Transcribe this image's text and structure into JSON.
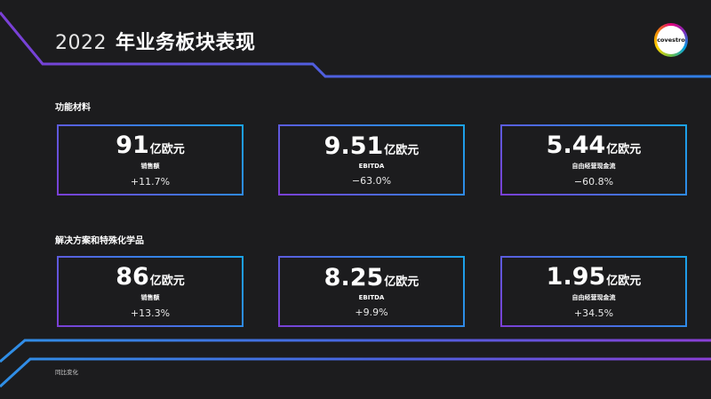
{
  "header": {
    "year": "2022",
    "title": "年业务板块表现",
    "logo_text": "covestro"
  },
  "sections": [
    {
      "label": "功能材料",
      "cards": [
        {
          "value": "91",
          "unit": "亿欧元",
          "metric": "销售额",
          "change": "+11.7%"
        },
        {
          "value": "9.51",
          "unit": "亿欧元",
          "metric": "EBITDA",
          "change": "−63.0%"
        },
        {
          "value": "5.44",
          "unit": "亿欧元",
          "metric": "自由经营现金流",
          "change": "−60.8%"
        }
      ]
    },
    {
      "label": "解决方案和特殊化学品",
      "cards": [
        {
          "value": "86",
          "unit": "亿欧元",
          "metric": "销售额",
          "change": "+13.3%"
        },
        {
          "value": "8.25",
          "unit": "亿欧元",
          "metric": "EBITDA",
          "change": "+9.9%"
        },
        {
          "value": "1.95",
          "unit": "亿欧元",
          "metric": "自由经营现金流",
          "change": "+34.5%"
        }
      ]
    }
  ],
  "footnote": "同比变化",
  "colors": {
    "background": "#1c1c1e",
    "gradient_purple": "#7b3fd6",
    "gradient_blue": "#1aa3e8",
    "text": "#ffffff"
  }
}
